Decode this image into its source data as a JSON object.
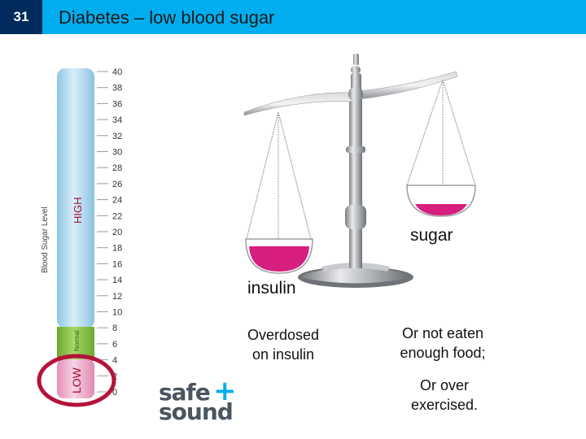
{
  "slide": {
    "number": "31",
    "title": "Diabetes – low blood sugar"
  },
  "gauge": {
    "axis_label": "Blood Sugar Level",
    "high_label": "HIGH",
    "normal_label": "Normal",
    "low_label": "LOW",
    "ticks": [
      "40",
      "38",
      "36",
      "34",
      "32",
      "30",
      "28",
      "26",
      "24",
      "22",
      "20",
      "18",
      "16",
      "14",
      "12",
      "10",
      "8",
      "6",
      "4",
      "2",
      "0"
    ],
    "low_max": 4,
    "normal_max": 8,
    "scale_max": 40,
    "colors": {
      "blue": "#a9d6ee",
      "green": "#8cc63f",
      "pink": "#e04f93",
      "circle": "#b5123a"
    }
  },
  "scale": {
    "left_label": "insulin",
    "right_label": "sugar",
    "liquid_color": "#d61f7e"
  },
  "notes": {
    "left": [
      "Overdosed",
      "on insulin"
    ],
    "right_1": [
      "Or not eaten",
      "enough food;"
    ],
    "right_2": [
      "Or over",
      "exercised."
    ]
  },
  "logo": {
    "word1": "safe",
    "plus": "+",
    "word2": "sound",
    "plus_color": "#00aeef"
  }
}
